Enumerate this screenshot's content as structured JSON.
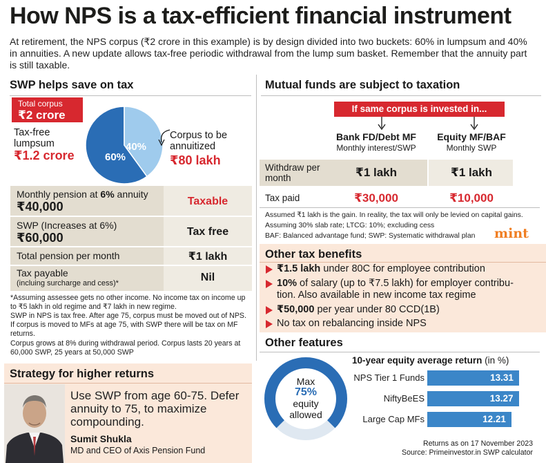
{
  "title": "How NPS is a tax-efficient financial instrument",
  "intro": "At retirement, the NPS corpus (₹2 crore in this example) is by design divided into two buckets: 60% in lumpsum and 40% in annuities. A new update allows tax-free periodic withdrawal from the lump sum basket. Remember that the annuity part is still taxable.",
  "swp": {
    "heading": "SWP helps save on tax",
    "total_label": "Total corpus",
    "total_value": "₹2 crore",
    "lumpsum_label_1": "Tax-free",
    "lumpsum_label_2": "lumpsum",
    "lumpsum_value": "₹1.2 crore",
    "annuity_label_1": "Corpus to be",
    "annuity_label_2": "annuitized",
    "annuity_value": "₹80 lakh",
    "table": {
      "r1_label_pre": "Monthly pension at ",
      "r1_label_bold": "6%",
      "r1_label_post": " annuity",
      "r1_amount": "₹40,000",
      "r1_status": "Taxable",
      "r2_label": "SWP (Increases at 6%)",
      "r2_amount": "₹60,000",
      "r2_status": "Tax free",
      "r3_label": "Total pension per month",
      "r3_status": "₹1 lakh",
      "r4_label": "Tax payable",
      "r4_sub": "(incluing surcharge and cess)*",
      "r4_status": "Nil"
    },
    "note_1": "*Assuming assessee gets no other income. No income tax on income up to ₹5 lakh in old regime and ₹7 lakh in new regime.",
    "note_2": "SWP in NPS is tax free. After age 75, corpus must be moved out of NPS. If corpus is moved to MFs at age 75, with SWP there will be tax on MF returns.",
    "note_3": "Corpus grows at 8% during withdrawal period. Corpus lasts 20 years at 60,000 SWP, 25 years at 50,000 SWP"
  },
  "strategy": {
    "heading": "Strategy for higher returns",
    "quote": "Use SWP from age 60-75. Defer annuity to 75, to maximize compounding.",
    "name": "Sumit Shukla",
    "role": "MD and CEO of Axis Pension Fund"
  },
  "mf": {
    "heading": "Mutual funds are subject to taxation",
    "banner": "If same corpus is invested in...",
    "col1_title": "Bank FD/Debt MF",
    "col1_sub": "Monthly interest/SWP",
    "col2_title": "Equity MF/BAF",
    "col2_sub": "Monthly SWP",
    "row1_label": "Withdraw per month",
    "row1_col1": "₹1 lakh",
    "row1_col2": "₹1 lakh",
    "row2_label": "Tax paid",
    "row2_col1": "₹30,000",
    "row2_col2": "₹10,000",
    "note_1": "Assumed ₹1 lakh is the gain. In reality, the tax will only be levied on capital gains.",
    "note_2": "Assuming 30% slab rate; LTCG: 10%; excluding cess",
    "note_3": "BAF: Balanced advantage fund; SWP: Systematic withdrawal plan",
    "logo": "mint"
  },
  "benefits": {
    "heading": "Other tax benefits",
    "items": [
      {
        "bold": "₹1.5 lakh",
        "rest": " under 80C for employee contribution"
      },
      {
        "bold": "10%",
        "rest": " of salary (up to ₹7.5 lakh) for employer contribu-"
      },
      {
        "bold": "₹50,000",
        "rest": " per year under 80 CCD(1B)"
      },
      {
        "bold": "",
        "rest": "No tax on rebalancing inside NPS"
      }
    ],
    "item2_cont": "tion. Also available in new income tax regime"
  },
  "features": {
    "heading": "Other features",
    "donut_line1": "Max",
    "donut_line2": "75%",
    "donut_line3": "equity",
    "donut_line4": "allowed",
    "equity_max_pct": 75,
    "footer_1": "Returns as on 17 November 2023",
    "footer_2": "Source: Primeinvestor.in SWP calculator"
  },
  "colors": {
    "red": "#d7282f",
    "blue_dark": "#2a6db5",
    "blue_light": "#9fcbed",
    "bar_blue": "#3b86c8",
    "tan": "#e3ddd0",
    "peach": "#fbe8da",
    "mint_orange": "#f07e22"
  },
  "chart_data": [
    {
      "type": "pie",
      "categories": [
        "Tax-free lumpsum",
        "Corpus to be annuitized"
      ],
      "values": [
        60,
        40
      ],
      "value_labels": [
        "60%",
        "40%"
      ],
      "title": ""
    },
    {
      "type": "bar",
      "orientation": "horizontal",
      "title": "10-year equity average return",
      "title_unit": "(in %)",
      "categories": [
        "NPS Tier 1 Funds",
        "NiftyBeES",
        "Large Cap MFs"
      ],
      "values": [
        13.31,
        13.27,
        12.21
      ],
      "value_labels": [
        "13.31",
        "13.27",
        "12.21"
      ],
      "xlim": [
        0,
        13.5
      ]
    }
  ]
}
